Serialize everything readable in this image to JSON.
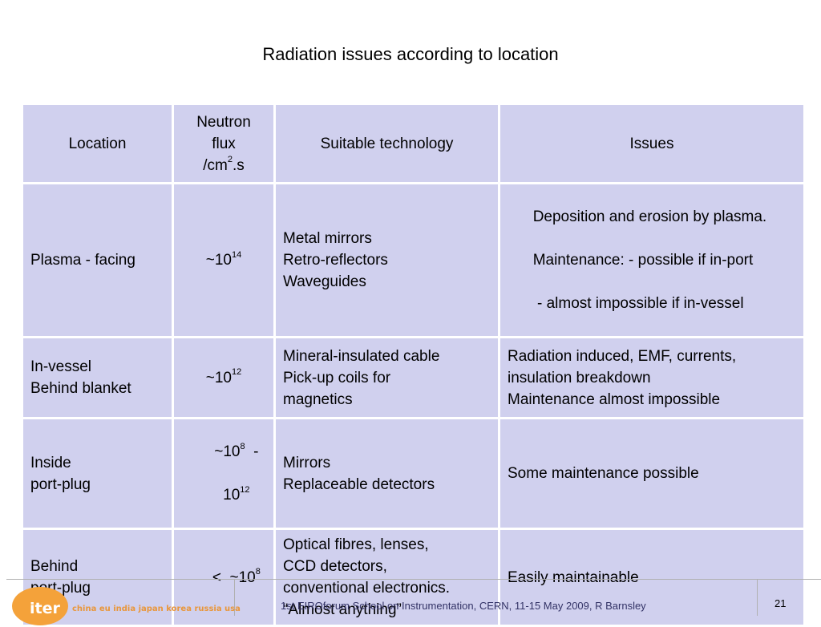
{
  "title": "Radiation issues according to location",
  "table": {
    "headers": {
      "location": "Location",
      "flux_lines": [
        "Neutron",
        "flux",
        "/cm",
        "2",
        ".s"
      ],
      "technology": "Suitable technology",
      "issues": "Issues"
    },
    "rows": [
      {
        "location": [
          "Plasma - facing"
        ],
        "flux": {
          "prefix": "~10",
          "exp": "14"
        },
        "technology": [
          "Metal mirrors",
          "Retro-reflectors",
          "Waveguides"
        ],
        "issues": [
          "Deposition and erosion by plasma.",
          "Maintenance: - possible if in-port",
          " - almost impossible if in-vessel"
        ]
      },
      {
        "location": [
          "In-vessel",
          "Behind blanket"
        ],
        "flux": {
          "prefix": "~10",
          "exp": "12"
        },
        "technology": [
          "Mineral-insulated cable",
          "Pick-up coils for",
          "magnetics"
        ],
        "issues": [
          "Radiation induced, EMF, currents,",
          "insulation breakdown",
          "Maintenance almost impossible"
        ]
      },
      {
        "location": [
          "Inside",
          "port-plug"
        ],
        "flux": {
          "line1_prefix": "~10",
          "line1_exp": "8",
          "line1_suffix": "  -",
          "line2_prefix": "10",
          "line2_exp": "12"
        },
        "technology": [
          "Mirrors",
          "Replaceable detectors"
        ],
        "issues": [
          "Some maintenance possible"
        ]
      },
      {
        "location": [
          "Behind",
          "port-plug"
        ],
        "flux": {
          "prefix": "<  ~10",
          "exp": "8"
        },
        "technology": [
          "Optical fibres, lenses,",
          "CCD detectors,",
          "conventional electronics.",
          "“Almost anything”"
        ],
        "issues": [
          "Easily maintainable"
        ]
      }
    ]
  },
  "footer": {
    "logo": "iter",
    "tagline": "china eu india japan korea russia usa",
    "text": "1st EIROforum School on Instrumentation, CERN, 11-15 May 2009, R Barnsley",
    "page": "21"
  },
  "colors": {
    "cell_bg": "#d0d0ee",
    "logo_orange": "#f4a23a",
    "footer_text": "#333366"
  }
}
